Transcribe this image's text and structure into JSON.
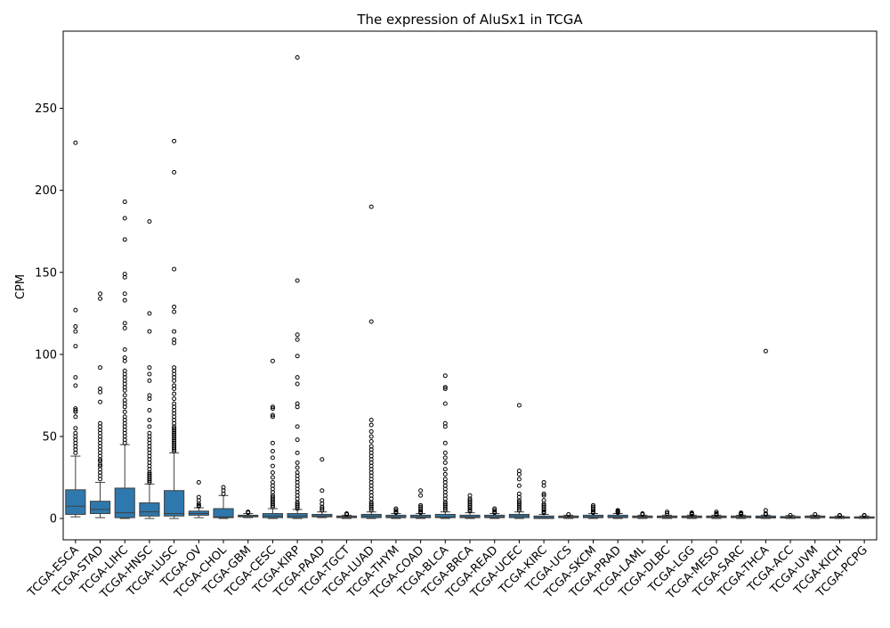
{
  "chart_data": {
    "type": "box",
    "title": "The expression of AluSx1 in TCGA",
    "xlabel": "",
    "ylabel": "CPM",
    "ylim": [
      -13,
      297
    ],
    "y_ticks": [
      0,
      50,
      100,
      150,
      200,
      250
    ],
    "grid": false,
    "box_color": "#2e78ad",
    "categories": [
      "TCGA-ESCA",
      "TCGA-STAD",
      "TCGA-LIHC",
      "TCGA-HNSC",
      "TCGA-LUSC",
      "TCGA-OV",
      "TCGA-CHOL",
      "TCGA-GBM",
      "TCGA-CESC",
      "TCGA-KIRP",
      "TCGA-PAAD",
      "TCGA-TGCT",
      "TCGA-LUAD",
      "TCGA-THYM",
      "TCGA-COAD",
      "TCGA-BLCA",
      "TCGA-BRCA",
      "TCGA-READ",
      "TCGA-UCEC",
      "TCGA-KIRC",
      "TCGA-UCS",
      "TCGA-SKCM",
      "TCGA-PRAD",
      "TCGA-LAML",
      "TCGA-DLBC",
      "TCGA-LGG",
      "TCGA-MESO",
      "TCGA-SARC",
      "TCGA-THCA",
      "TCGA-ACC",
      "TCGA-UVM",
      "TCGA-KICH",
      "TCGA-PCPG"
    ],
    "boxes": [
      {
        "q1": 2.5,
        "median": 7.5,
        "q3": 17.5,
        "whislo": 1.0,
        "whishi": 38.0,
        "fliers": [
          229,
          127,
          117,
          114,
          105,
          86,
          81,
          67,
          66,
          65,
          62,
          55,
          52,
          50,
          48,
          46,
          44,
          42,
          40
        ]
      },
      {
        "q1": 3.0,
        "median": 5.5,
        "q3": 10.5,
        "whislo": 0.5,
        "whishi": 22.0,
        "fliers": [
          137,
          134,
          92,
          79,
          77,
          71,
          58,
          56,
          54,
          52,
          50,
          48,
          46,
          44,
          42,
          40,
          38,
          36,
          35,
          33,
          32,
          30,
          28,
          26,
          24
        ]
      },
      {
        "q1": 0.5,
        "median": 3.5,
        "q3": 18.5,
        "whislo": 0.0,
        "whishi": 45.0,
        "fliers": [
          193,
          183,
          170,
          149,
          147,
          137,
          133,
          119,
          116,
          103,
          98,
          96,
          90,
          88,
          86,
          84,
          82,
          80,
          78,
          75,
          72,
          70,
          68,
          65,
          62,
          60,
          58,
          56,
          54,
          52,
          50,
          48,
          46
        ]
      },
      {
        "q1": 1.5,
        "median": 4.0,
        "q3": 9.5,
        "whislo": 0.0,
        "whishi": 21.0,
        "fliers": [
          181,
          125,
          114,
          92,
          88,
          84,
          75,
          73,
          66,
          60,
          56,
          52,
          50,
          48,
          46,
          44,
          42,
          40,
          38,
          36,
          34,
          32,
          30,
          28,
          27,
          26,
          25,
          24,
          23,
          22
        ]
      },
      {
        "q1": 1.5,
        "median": 3.0,
        "q3": 17.0,
        "whislo": 0.0,
        "whishi": 40.0,
        "fliers": [
          230,
          211,
          152,
          129,
          126,
          114,
          109,
          107,
          92,
          90,
          88,
          86,
          84,
          81,
          79,
          76,
          73,
          70,
          68,
          66,
          64,
          62,
          60,
          58,
          56,
          55,
          54,
          53,
          52,
          51,
          50,
          49,
          48,
          47,
          46,
          45,
          44,
          43,
          42,
          41
        ]
      },
      {
        "q1": 2.0,
        "median": 3.0,
        "q3": 4.5,
        "whislo": 0.5,
        "whishi": 6.5,
        "fliers": [
          22,
          13,
          11,
          9,
          8,
          7.5
        ]
      },
      {
        "q1": 0.5,
        "median": 1.0,
        "q3": 6.0,
        "whislo": 0.0,
        "whishi": 14.0,
        "fliers": [
          19,
          17,
          15
        ]
      },
      {
        "q1": 1.0,
        "median": 1.5,
        "q3": 2.0,
        "whislo": 0.5,
        "whishi": 3.0,
        "fliers": [
          4,
          3.5
        ]
      },
      {
        "q1": 0.5,
        "median": 1.5,
        "q3": 3.0,
        "whislo": 0.0,
        "whishi": 6.0,
        "fliers": [
          96,
          68,
          67,
          63,
          62,
          46,
          41,
          37,
          32,
          28,
          25,
          22,
          20,
          18,
          16,
          14,
          13,
          12,
          11,
          10,
          9,
          8,
          7
        ]
      },
      {
        "q1": 0.5,
        "median": 1.5,
        "q3": 3.0,
        "whislo": 0.0,
        "whishi": 5.5,
        "fliers": [
          281,
          145,
          112,
          109,
          99,
          86,
          82,
          70,
          68,
          56,
          48,
          40,
          34,
          31,
          28,
          26,
          24,
          22,
          20,
          18,
          16,
          14,
          12,
          10,
          9,
          8,
          7,
          6
        ]
      },
      {
        "q1": 1.0,
        "median": 1.5,
        "q3": 2.5,
        "whislo": 0.5,
        "whishi": 4.0,
        "fliers": [
          36,
          17,
          11,
          9,
          7,
          6,
          5
        ]
      },
      {
        "q1": 0.5,
        "median": 1.0,
        "q3": 1.5,
        "whislo": 0.0,
        "whishi": 2.0,
        "fliers": [
          3,
          2.5
        ]
      },
      {
        "q1": 0.5,
        "median": 1.5,
        "q3": 2.5,
        "whislo": 0.0,
        "whishi": 4.0,
        "fliers": [
          190,
          120,
          60,
          57,
          53,
          50,
          47,
          44,
          42,
          40,
          38,
          36,
          34,
          32,
          30,
          28,
          26,
          24,
          22,
          20,
          18,
          16,
          14,
          12,
          10,
          9,
          8,
          7,
          6,
          5
        ]
      },
      {
        "q1": 0.5,
        "median": 1.0,
        "q3": 2.0,
        "whislo": 0.0,
        "whishi": 3.0,
        "fliers": [
          6,
          5,
          4,
          3.5
        ]
      },
      {
        "q1": 0.5,
        "median": 1.0,
        "q3": 2.0,
        "whislo": 0.0,
        "whishi": 3.0,
        "fliers": [
          17,
          14,
          8,
          7,
          6,
          5,
          4,
          3.5
        ]
      },
      {
        "q1": 0.5,
        "median": 1.0,
        "q3": 2.5,
        "whislo": 0.0,
        "whishi": 4.0,
        "fliers": [
          87,
          80,
          79,
          70,
          58,
          56,
          46,
          40,
          37,
          34,
          30,
          27,
          24,
          22,
          20,
          18,
          16,
          14,
          12,
          10,
          9,
          8,
          7,
          6,
          5
        ]
      },
      {
        "q1": 0.5,
        "median": 1.0,
        "q3": 2.0,
        "whislo": 0.0,
        "whishi": 3.5,
        "fliers": [
          14,
          12,
          11,
          10,
          9,
          8,
          7,
          6,
          5,
          4.5
        ]
      },
      {
        "q1": 0.5,
        "median": 1.0,
        "q3": 2.0,
        "whislo": 0.0,
        "whishi": 3.0,
        "fliers": [
          6,
          5,
          4,
          3.5
        ]
      },
      {
        "q1": 0.5,
        "median": 1.5,
        "q3": 2.5,
        "whislo": 0.0,
        "whishi": 4.0,
        "fliers": [
          69,
          29,
          27,
          24,
          20,
          15,
          13,
          11,
          10,
          9,
          8,
          7,
          6,
          5
        ]
      },
      {
        "q1": 0.0,
        "median": 0.5,
        "q3": 1.5,
        "whislo": 0.0,
        "whishi": 2.5,
        "fliers": [
          22,
          20,
          15,
          14,
          11,
          9,
          8,
          7,
          6,
          5,
          4,
          3.5
        ]
      },
      {
        "q1": 0.5,
        "median": 1.0,
        "q3": 1.5,
        "whislo": 0.0,
        "whishi": 2.0,
        "fliers": [
          2.5
        ]
      },
      {
        "q1": 0.5,
        "median": 1.0,
        "q3": 2.0,
        "whislo": 0.0,
        "whishi": 3.0,
        "fliers": [
          8,
          7,
          6,
          5,
          4,
          3.5
        ]
      },
      {
        "q1": 0.5,
        "median": 1.0,
        "q3": 2.0,
        "whislo": 0.0,
        "whishi": 3.0,
        "fliers": [
          5,
          4.5,
          4,
          3.5
        ]
      },
      {
        "q1": 0.5,
        "median": 1.0,
        "q3": 1.5,
        "whislo": 0.0,
        "whishi": 2.0,
        "fliers": [
          3,
          2.5
        ]
      },
      {
        "q1": 0.5,
        "median": 1.0,
        "q3": 1.5,
        "whislo": 0.0,
        "whishi": 2.0,
        "fliers": [
          4,
          3
        ]
      },
      {
        "q1": 0.5,
        "median": 1.0,
        "q3": 1.5,
        "whislo": 0.0,
        "whishi": 2.0,
        "fliers": [
          3.5,
          3,
          2.5
        ]
      },
      {
        "q1": 0.5,
        "median": 1.0,
        "q3": 1.5,
        "whislo": 0.0,
        "whishi": 2.0,
        "fliers": [
          4,
          3,
          2.5
        ]
      },
      {
        "q1": 0.5,
        "median": 1.0,
        "q3": 1.5,
        "whislo": 0.0,
        "whishi": 2.0,
        "fliers": [
          3.5,
          3,
          2.5
        ]
      },
      {
        "q1": 0.3,
        "median": 0.8,
        "q3": 1.5,
        "whislo": 0.0,
        "whishi": 2.0,
        "fliers": [
          102,
          5,
          3,
          2.5
        ]
      },
      {
        "q1": 0.3,
        "median": 0.6,
        "q3": 1.2,
        "whislo": 0.0,
        "whishi": 1.8,
        "fliers": [
          2
        ]
      },
      {
        "q1": 0.5,
        "median": 1.0,
        "q3": 1.5,
        "whislo": 0.0,
        "whishi": 2.0,
        "fliers": [
          2.5
        ]
      },
      {
        "q1": 0.2,
        "median": 0.5,
        "q3": 1.0,
        "whislo": 0.0,
        "whishi": 1.5,
        "fliers": [
          2,
          1.8
        ]
      },
      {
        "q1": 0.2,
        "median": 0.5,
        "q3": 1.0,
        "whislo": 0.0,
        "whishi": 1.5,
        "fliers": [
          2,
          1.8
        ]
      }
    ]
  }
}
